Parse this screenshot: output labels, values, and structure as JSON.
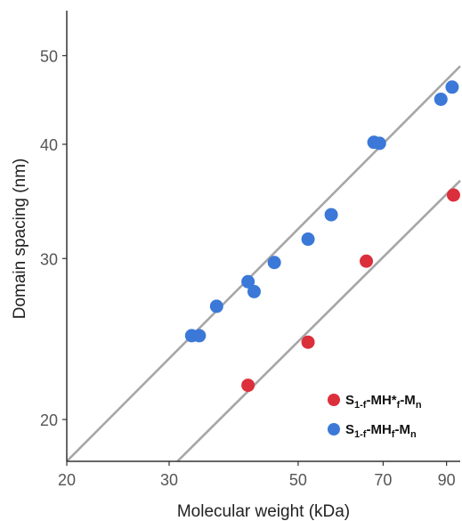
{
  "chart_data": {
    "type": "scatter",
    "xlabel": "Molecular weight (kDa)",
    "ylabel": "Domain spacing (nm)",
    "x_scale": "log",
    "y_scale": "log",
    "xlim": [
      20,
      95
    ],
    "ylim": [
      18,
      56
    ],
    "x_ticks": [
      20,
      30,
      50,
      70,
      90
    ],
    "y_ticks": [
      20,
      30,
      40,
      50
    ],
    "grid": false,
    "legend_position": "bottom-right",
    "series": [
      {
        "legend_parts": [
          "S",
          "1-f",
          "-MH*",
          "f",
          "-M",
          "n"
        ],
        "color": "#dc2f3c",
        "points": [
          [
            41,
            21.8
          ],
          [
            52,
            24.3
          ],
          [
            65.5,
            29.8
          ],
          [
            92.5,
            35.2
          ]
        ],
        "fit_line": [
          [
            31,
            18
          ],
          [
            95,
            36.5
          ]
        ]
      },
      {
        "legend_parts": [
          "S",
          "1-f",
          "-MH",
          "f",
          "-M",
          "n"
        ],
        "color": "#3b78d8",
        "points": [
          [
            32.8,
            24.7
          ],
          [
            33.8,
            24.7
          ],
          [
            36.2,
            26.6
          ],
          [
            41,
            28.3
          ],
          [
            42,
            27.6
          ],
          [
            45.5,
            29.7
          ],
          [
            52,
            31.5
          ],
          [
            57,
            33.5
          ],
          [
            67.5,
            40.2
          ],
          [
            69,
            40.1
          ],
          [
            88,
            44.8
          ],
          [
            92,
            46.2
          ]
        ],
        "fit_line": [
          [
            20,
            18
          ],
          [
            95,
            48.7
          ]
        ]
      }
    ]
  }
}
